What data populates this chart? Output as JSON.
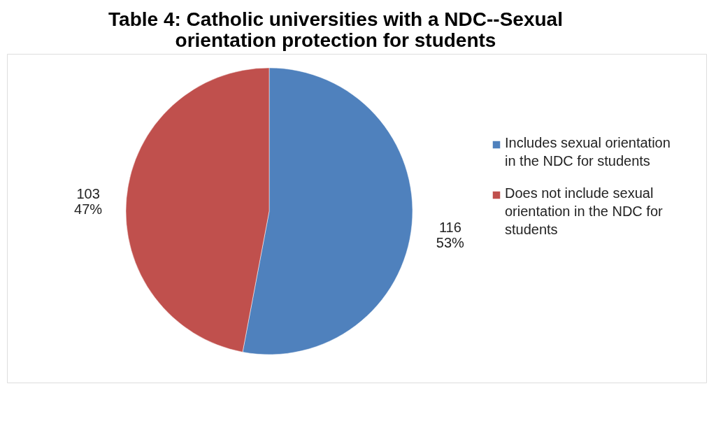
{
  "chart_data": {
    "type": "pie",
    "title": "Table 4:  Catholic universities with a NDC--Sexual orientation protection for students",
    "categories": [
      "Includes sexual orientation in the NDC for students",
      "Does not include sexual orientation in the NDC for students"
    ],
    "values": [
      116,
      103
    ],
    "colors": [
      "#4f81bd",
      "#c0504d"
    ],
    "value_labels": [
      "116\n53%",
      "103\n47%"
    ],
    "legend": "right"
  }
}
